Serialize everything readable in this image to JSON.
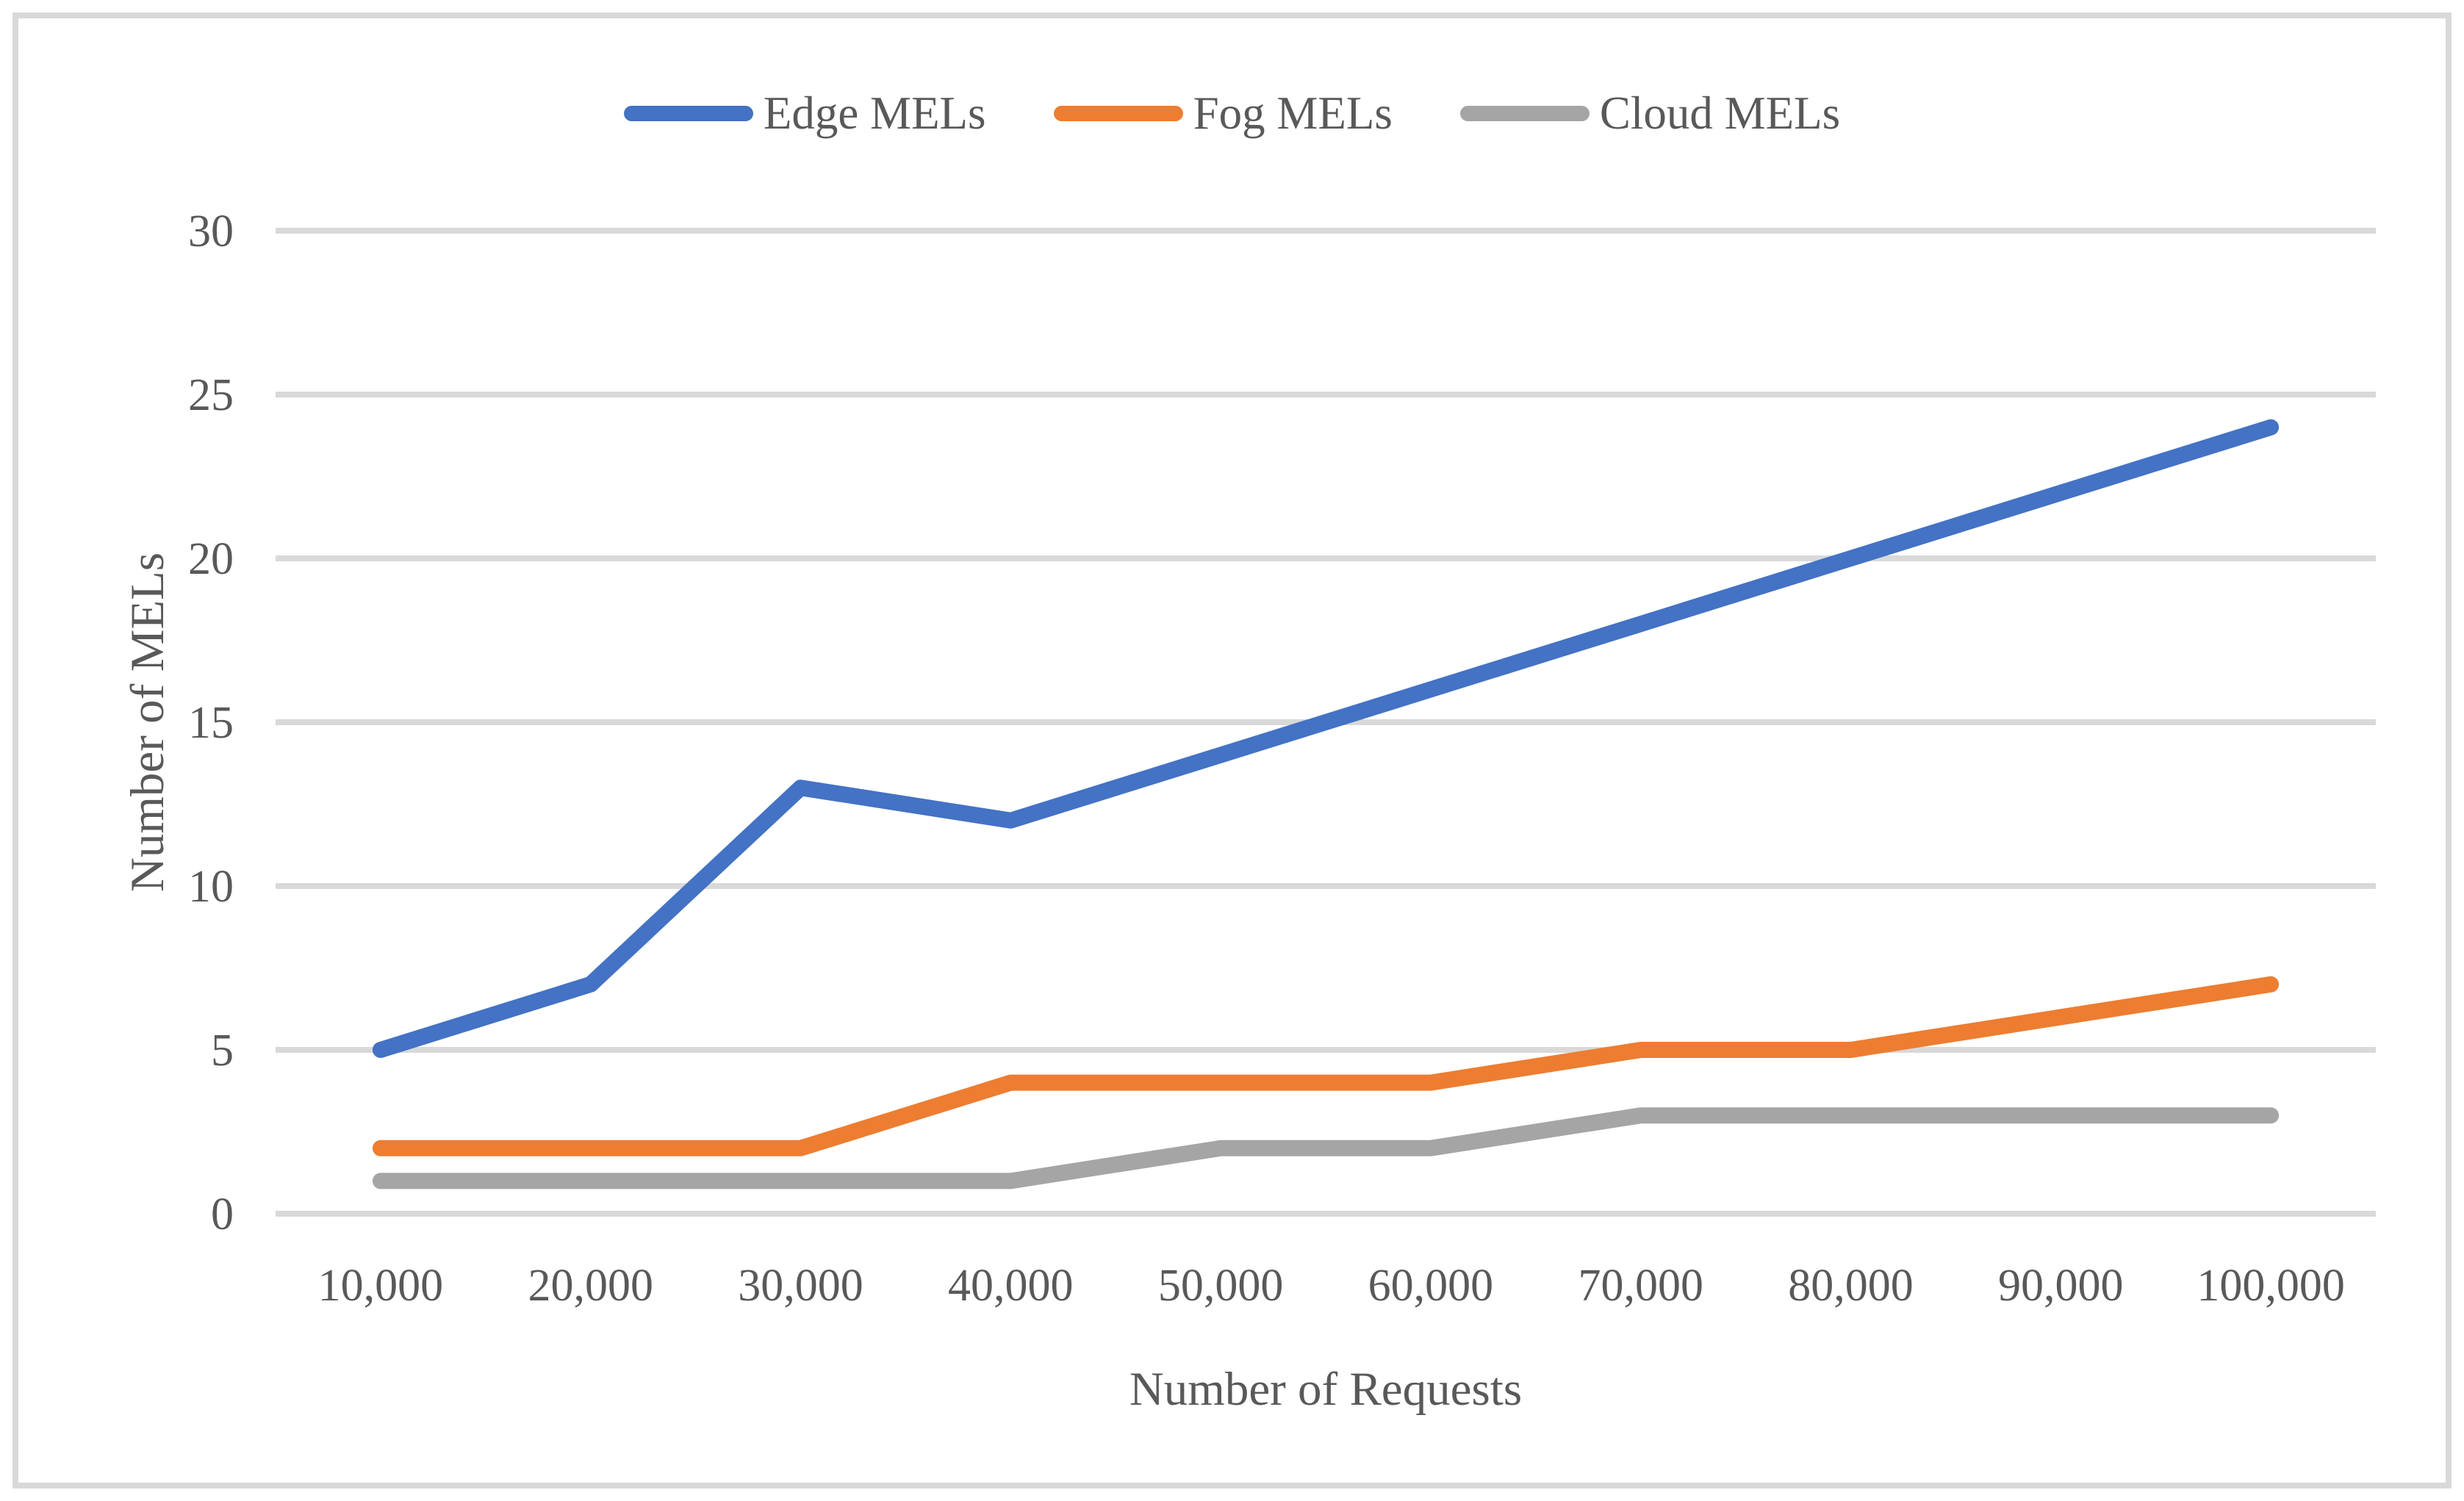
{
  "figure": {
    "background": "#FFFFFF",
    "border_color": "#D9D9D9"
  },
  "chart_data": {
    "type": "line",
    "title": "",
    "xlabel": "Number of Requests",
    "ylabel": "Number of MELs",
    "categories": [
      "10,000",
      "20,000",
      "30,000",
      "40,000",
      "50,000",
      "60,000",
      "70,000",
      "80,000",
      "90,000",
      "100,000"
    ],
    "series": [
      {
        "name": "Edge MELs",
        "color": "#4472C4",
        "values": [
          5,
          7,
          13,
          12,
          14,
          16,
          18,
          20,
          22,
          24
        ]
      },
      {
        "name": "Fog MELs",
        "color": "#ED7D31",
        "values": [
          2,
          2,
          2,
          4,
          4,
          4,
          5,
          5,
          6,
          7
        ]
      },
      {
        "name": "Cloud MELs",
        "color": "#A5A5A5",
        "values": [
          1,
          1,
          1,
          1,
          2,
          2,
          3,
          3,
          3,
          3
        ]
      }
    ],
    "ylim": [
      0,
      30
    ],
    "ytick_step": 5,
    "yticks": [
      0,
      5,
      10,
      15,
      20,
      25,
      30
    ],
    "grid": true,
    "legend_position": "top",
    "line_style": "straight-segments-round-caps",
    "markers": false,
    "colors": {
      "gridline": "#D9D9D9",
      "text": "#595959",
      "border": "#D9D9D9",
      "background": "#FFFFFF"
    }
  }
}
